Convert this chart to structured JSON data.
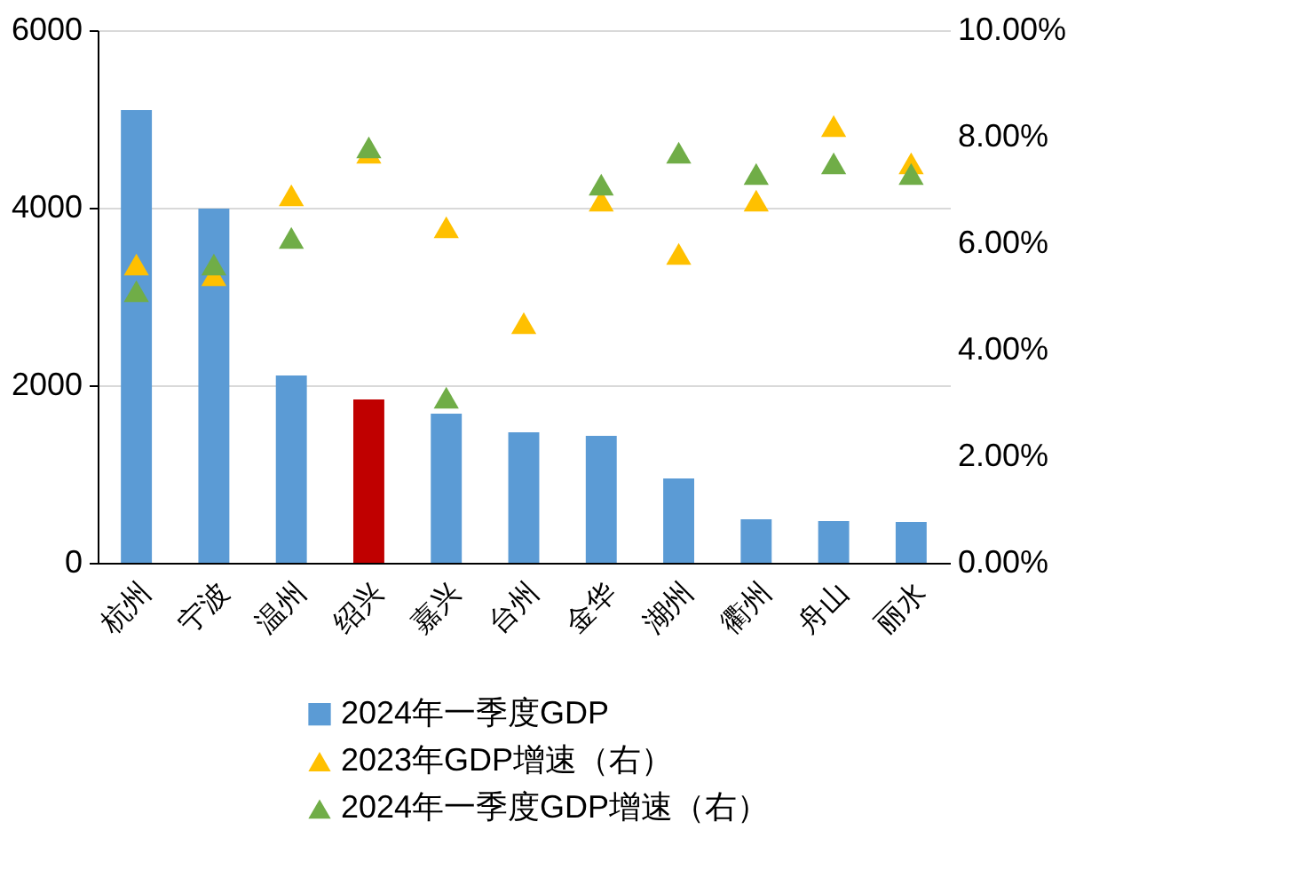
{
  "chart_data": {
    "type": "bar",
    "categories": [
      "杭州",
      "宁波",
      "温州",
      "绍兴",
      "嘉兴",
      "台州",
      "金华",
      "湖州",
      "衢州",
      "舟山",
      "丽水"
    ],
    "series": [
      {
        "name": "2024年一季度GDP",
        "color": "#5b9bd5",
        "colors": [
          "#5b9bd5",
          "#5b9bd5",
          "#5b9bd5",
          "#c00000",
          "#5b9bd5",
          "#5b9bd5",
          "#5b9bd5",
          "#5b9bd5",
          "#5b9bd5",
          "#5b9bd5",
          "#5b9bd5"
        ],
        "values": [
          5100,
          3990,
          2110,
          1840,
          1680,
          1470,
          1430,
          950,
          490,
          470,
          460
        ]
      },
      {
        "name": "2023年GDP增速（右）",
        "type": "scatter",
        "axis": "y2",
        "marker": "triangle",
        "color": "#ffc000",
        "values": [
          5.6,
          5.4,
          6.9,
          7.7,
          6.3,
          4.5,
          6.8,
          5.8,
          6.8,
          8.2,
          7.5
        ]
      },
      {
        "name": "2024年一季度GDP增速（右）",
        "type": "scatter",
        "axis": "y2",
        "marker": "triangle",
        "color": "#70ad47",
        "values": [
          5.1,
          5.6,
          6.1,
          7.8,
          3.1,
          null,
          7.1,
          7.7,
          7.3,
          7.5,
          7.3
        ]
      }
    ],
    "ylim": [
      0,
      6000
    ],
    "yticks": [
      0,
      2000,
      4000,
      6000
    ],
    "y2lim": [
      0,
      10
    ],
    "y2ticks": [
      {
        "value": 0,
        "label": "0.00%"
      },
      {
        "value": 2,
        "label": "2.00%"
      },
      {
        "value": 4,
        "label": "4.00%"
      },
      {
        "value": 6,
        "label": "6.00%"
      },
      {
        "value": 8,
        "label": "8.00%"
      },
      {
        "value": 10,
        "label": "10.00%"
      }
    ],
    "grid": "y",
    "legend": "bottom"
  }
}
